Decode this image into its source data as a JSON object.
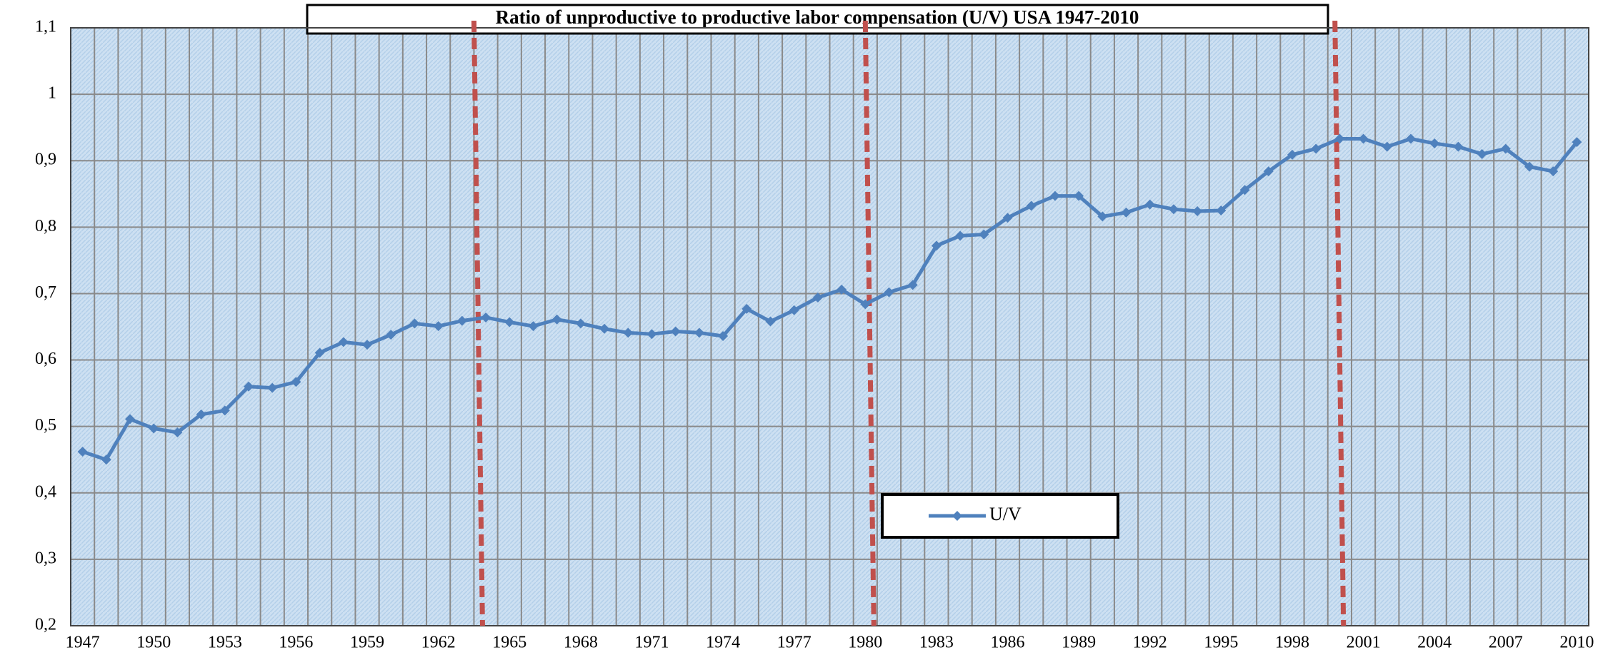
{
  "chart_data": {
    "type": "line",
    "title": "Ratio of unproductive to productive labor compensation (U/V) USA 1947-2010",
    "categories": [
      "1947",
      null,
      null,
      "1950",
      null,
      null,
      "1953",
      null,
      null,
      "1956",
      null,
      null,
      "1959",
      null,
      null,
      "1962",
      null,
      null,
      "1965",
      null,
      null,
      "1968",
      null,
      null,
      "1971",
      null,
      null,
      "1974",
      null,
      null,
      "1977",
      null,
      null,
      "1980",
      null,
      null,
      "1983",
      null,
      null,
      "1986",
      null,
      null,
      "1989",
      null,
      null,
      "1992",
      null,
      null,
      "1995",
      null,
      null,
      "1998",
      null,
      null,
      "2001",
      null,
      null,
      "2004",
      null,
      null,
      "2007",
      null,
      null,
      "2010"
    ],
    "series": [
      {
        "name": "U/V",
        "color": "#4f81bd",
        "values": [
          0.462,
          0.45,
          0.511,
          0.497,
          0.491,
          0.518,
          0.524,
          0.56,
          0.558,
          0.567,
          0.611,
          0.627,
          0.623,
          0.638,
          0.655,
          0.651,
          0.659,
          0.664,
          0.657,
          0.651,
          0.661,
          0.655,
          0.647,
          0.641,
          0.639,
          0.643,
          0.641,
          0.636,
          0.677,
          0.658,
          0.675,
          0.694,
          0.706,
          0.684,
          0.702,
          0.713,
          0.772,
          0.787,
          0.789,
          0.814,
          0.832,
          0.847,
          0.847,
          0.816,
          0.822,
          0.834,
          0.827,
          0.824,
          0.825,
          0.856,
          0.884,
          0.909,
          0.918,
          0.933,
          0.933,
          0.921,
          0.933,
          0.926,
          0.921,
          0.91,
          0.918,
          0.891,
          0.884,
          0.928
        ]
      }
    ],
    "ylim": [
      0.2,
      1.1
    ],
    "yticks": [
      {
        "value": 0.2,
        "label": "0,2"
      },
      {
        "value": 0.3,
        "label": "0,3"
      },
      {
        "value": 0.4,
        "label": "0,4"
      },
      {
        "value": 0.5,
        "label": "0,5"
      },
      {
        "value": 0.6,
        "label": "0,6"
      },
      {
        "value": 0.7,
        "label": "0,7"
      },
      {
        "value": 0.8,
        "label": "0,8"
      },
      {
        "value": 0.9,
        "label": "0,9"
      },
      1,
      {
        "value": 1.1,
        "label": "1,1"
      }
    ],
    "grid": true,
    "reference_lines": {
      "x": [
        1963.5,
        1980,
        1999.8
      ],
      "color": "#c0504d"
    }
  }
}
